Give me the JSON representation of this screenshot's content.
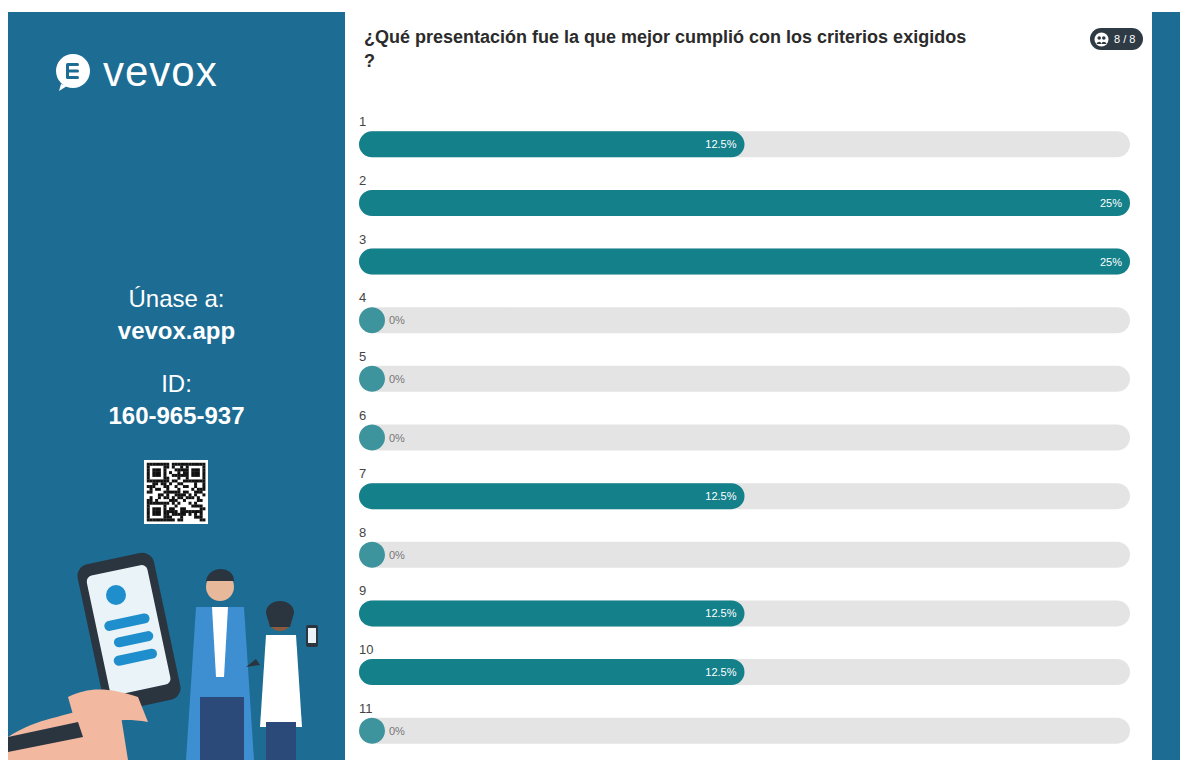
{
  "chart_data": {
    "type": "bar",
    "orientation": "horizontal",
    "title": "¿Qué presentación fue la que mejor cumplió con los criterios exigidos?",
    "categories": [
      "1",
      "2",
      "3",
      "4",
      "5",
      "6",
      "7",
      "8",
      "9",
      "10",
      "11"
    ],
    "values": [
      12.5,
      25,
      25,
      0,
      0,
      0,
      12.5,
      0,
      12.5,
      12.5,
      0
    ],
    "value_labels": [
      "12.5%",
      "25%",
      "25%",
      "0%",
      "0%",
      "0%",
      "12.5%",
      "0%",
      "12.5%",
      "12.5%",
      "0%"
    ],
    "xlim": [
      0,
      25
    ],
    "color": "#13808a",
    "data_labels": true,
    "tick_labels": false,
    "grid": false
  },
  "header": {
    "responses": "8 / 8"
  },
  "sidebar": {
    "logo": "vevox",
    "join_label": "Únase a:",
    "join_url": "vevox.app",
    "id_label": "ID:",
    "id": "160-965-937"
  }
}
